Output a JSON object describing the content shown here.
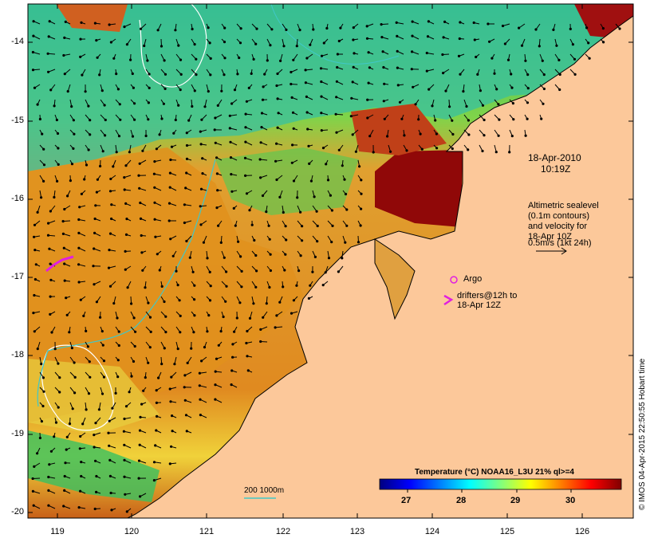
{
  "map": {
    "lon_ticks": [
      "119",
      "120",
      "121",
      "122",
      "123",
      "124",
      "125",
      "126"
    ],
    "lat_ticks": [
      "-14",
      "-15",
      "-16",
      "-17",
      "-18",
      "-19",
      "-20"
    ],
    "land_color": "#fcc89a",
    "frame_color": "#000000"
  },
  "annotations": {
    "timestamp_date": "18-Apr-2010",
    "timestamp_time": "10:19Z",
    "altimetry_lines": [
      "Altimetric sealevel",
      "(0.1m contours)",
      "and velocity for",
      "18-Apr 10Z",
      "0.5m/s (1kt 24h)"
    ],
    "argo_label": "Argo",
    "argo_color": "#e020e0",
    "drifters_line1": "drifters@12h to",
    "drifters_line2": "18-Apr 12Z",
    "drifter_color": "#e020e0",
    "bathy_label": "200 1000m"
  },
  "colorbar": {
    "title": "Temperature (°C) NOAA16_L3U 21% ql>=4",
    "ticks": [
      "27",
      "28",
      "29",
      "30"
    ],
    "stops": [
      "#00007f",
      "#0000ff",
      "#007fff",
      "#00ffff",
      "#7fff7f",
      "#ffff00",
      "#ff7f00",
      "#ff0000",
      "#7f0000"
    ]
  },
  "credit": "© IMOS 04-Apr-2015 22:50:55 Hobart time"
}
